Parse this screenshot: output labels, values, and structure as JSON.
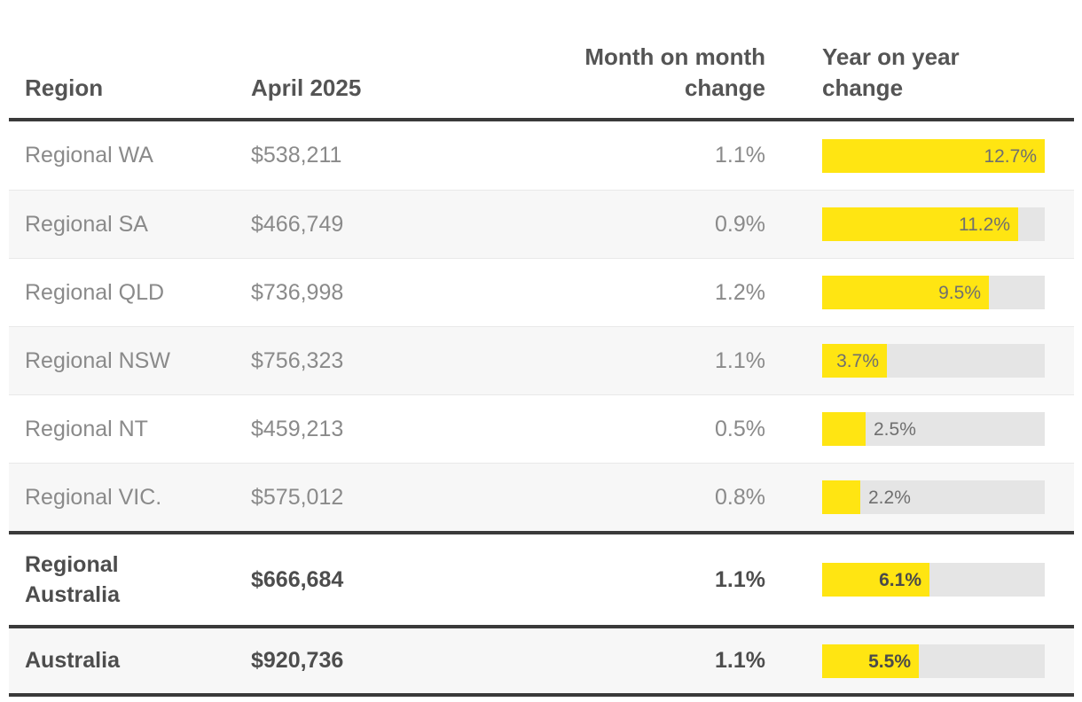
{
  "table": {
    "columns": [
      {
        "label": "Region"
      },
      {
        "label": "April 2025"
      },
      {
        "label": "Month on month change"
      },
      {
        "label": "Year on year change"
      }
    ],
    "rows": [
      {
        "region": "Regional WA",
        "value": "$538,211",
        "mom": "1.1%",
        "yoy": "12.7%",
        "yoy_value": 12.7,
        "summary": false
      },
      {
        "region": "Regional SA",
        "value": "$466,749",
        "mom": "0.9%",
        "yoy": "11.2%",
        "yoy_value": 11.2,
        "summary": false
      },
      {
        "region": "Regional QLD",
        "value": "$736,998",
        "mom": "1.2%",
        "yoy": "9.5%",
        "yoy_value": 9.5,
        "summary": false
      },
      {
        "region": "Regional NSW",
        "value": "$756,323",
        "mom": "1.1%",
        "yoy": "3.7%",
        "yoy_value": 3.7,
        "summary": false
      },
      {
        "region": "Regional NT",
        "value": "$459,213",
        "mom": "0.5%",
        "yoy": "2.5%",
        "yoy_value": 2.5,
        "summary": false
      },
      {
        "region": "Regional VIC.",
        "value": "$575,012",
        "mom": "0.8%",
        "yoy": "2.2%",
        "yoy_value": 2.2,
        "summary": false
      },
      {
        "region": "Regional Australia",
        "value": "$666,684",
        "mom": "1.1%",
        "yoy": "6.1%",
        "yoy_value": 6.1,
        "summary": true
      },
      {
        "region": "Australia",
        "value": "$920,736",
        "mom": "1.1%",
        "yoy": "5.5%",
        "yoy_value": 5.5,
        "summary": true
      }
    ],
    "yoy_max": 12.7
  },
  "colors": {
    "bar_fill": "#ffe512",
    "bar_track": "#e5e5e5",
    "row_stripe": "#f7f7f7",
    "rule_dark": "#3a3a3a"
  },
  "chart_data": {
    "type": "table",
    "title": "",
    "columns": [
      "Region",
      "April 2025",
      "Month on month change",
      "Year on year change"
    ],
    "rows": [
      [
        "Regional WA",
        "$538,211",
        "1.1%",
        "12.7%"
      ],
      [
        "Regional SA",
        "$466,749",
        "0.9%",
        "11.2%"
      ],
      [
        "Regional QLD",
        "$736,998",
        "1.2%",
        "9.5%"
      ],
      [
        "Regional NSW",
        "$756,323",
        "1.1%",
        "3.7%"
      ],
      [
        "Regional NT",
        "$459,213",
        "0.5%",
        "2.5%"
      ],
      [
        "Regional VIC.",
        "$575,012",
        "0.8%",
        "2.2%"
      ],
      [
        "Regional Australia",
        "$666,684",
        "1.1%",
        "6.1%"
      ],
      [
        "Australia",
        "$920,736",
        "1.1%",
        "5.5%"
      ]
    ],
    "bar_series": {
      "name": "Year on year change",
      "categories": [
        "Regional WA",
        "Regional SA",
        "Regional QLD",
        "Regional NSW",
        "Regional NT",
        "Regional VIC.",
        "Regional Australia",
        "Australia"
      ],
      "values": [
        12.7,
        11.2,
        9.5,
        3.7,
        2.5,
        2.2,
        6.1,
        5.5
      ],
      "unit": "%",
      "axis_max": 12.7,
      "color": "#ffe512"
    }
  }
}
